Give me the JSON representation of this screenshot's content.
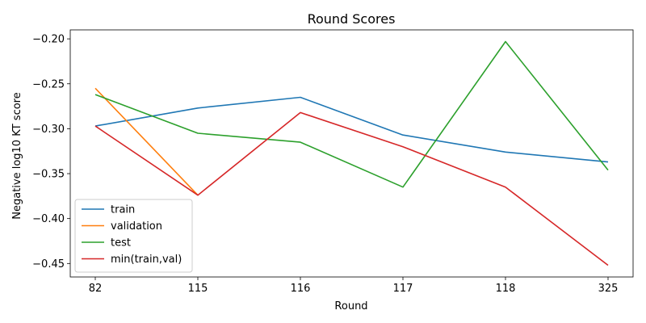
{
  "chart_data": {
    "type": "line",
    "title": "Round Scores",
    "xlabel": "Round",
    "ylabel": "Negative log10 KT score",
    "categories": [
      "82",
      "115",
      "116",
      "117",
      "118",
      "325"
    ],
    "ylim": [
      -0.465,
      -0.19
    ],
    "yticks": [
      -0.45,
      -0.4,
      -0.35,
      -0.3,
      -0.25,
      -0.2
    ],
    "ytick_labels": [
      "−0.45",
      "−0.40",
      "−0.35",
      "−0.30",
      "−0.25",
      "−0.20"
    ],
    "grid": false,
    "legend": "lower-left",
    "series": [
      {
        "name": "train",
        "color": "#1f77b4",
        "values": [
          -0.297,
          -0.277,
          -0.265,
          -0.307,
          -0.326,
          -0.337
        ]
      },
      {
        "name": "validation",
        "color": "#ff7f0e",
        "values": [
          -0.255,
          -0.374,
          null,
          null,
          null,
          null
        ]
      },
      {
        "name": "test",
        "color": "#2ca02c",
        "values": [
          -0.262,
          -0.305,
          -0.315,
          -0.365,
          -0.203,
          -0.346
        ]
      },
      {
        "name": "min(train,val)",
        "color": "#d62728",
        "values": [
          -0.297,
          -0.374,
          -0.282,
          -0.32,
          -0.365,
          -0.452
        ]
      }
    ]
  }
}
